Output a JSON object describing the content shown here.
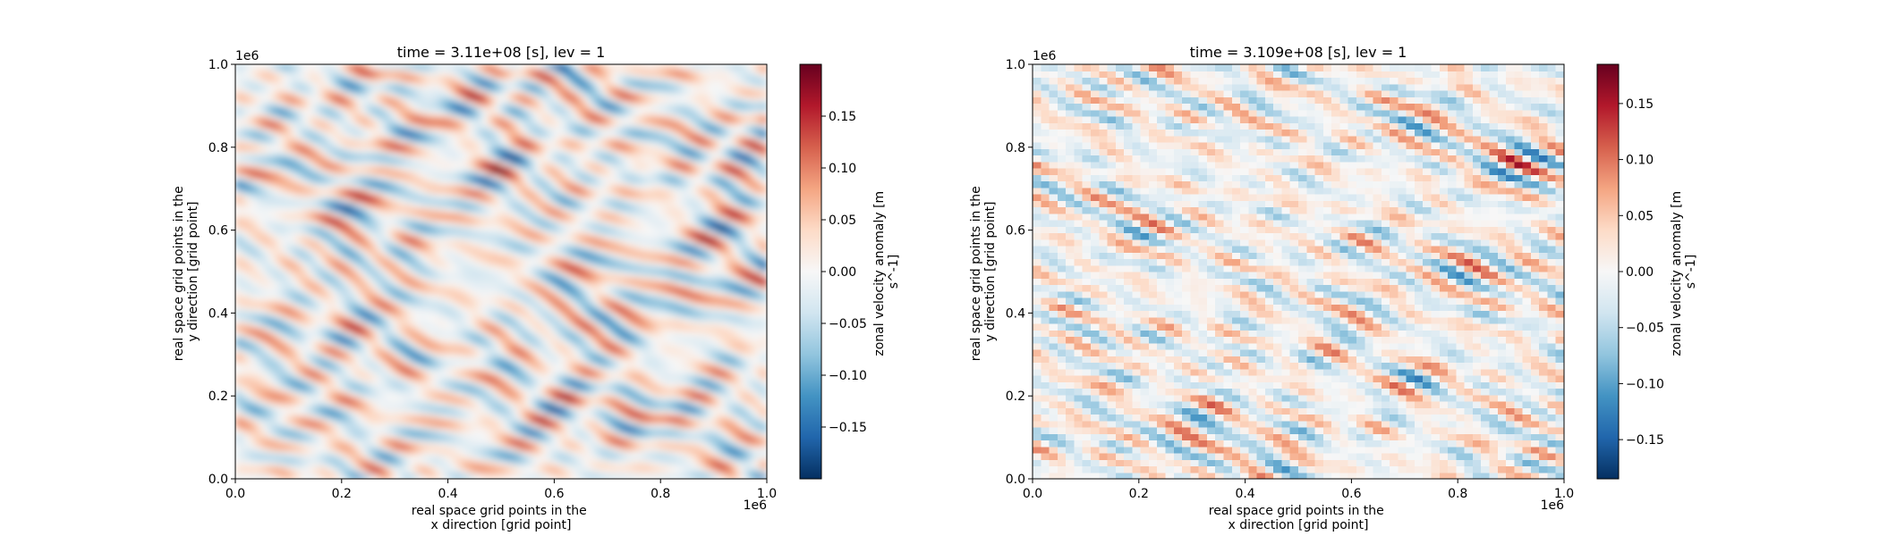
{
  "chart_data": [
    {
      "type": "heatmap",
      "title": "time = 3.11e+08 [s], lev = 1",
      "xlabel": "real space grid points in the x direction [grid point]",
      "xlabel_lines": [
        "real space grid points in the",
        "x direction [grid point]"
      ],
      "ylabel": "real space grid points in the y direction [grid point]",
      "ylabel_lines": [
        "real space grid points in the",
        "y direction [grid point]"
      ],
      "x_ticks": [
        0.0,
        0.2,
        0.4,
        0.6,
        0.8,
        1.0
      ],
      "x_tick_labels": [
        "0.0",
        "0.2",
        "0.4",
        "0.6",
        "0.8",
        "1.0"
      ],
      "y_ticks": [
        0.0,
        0.2,
        0.4,
        0.6,
        0.8,
        1.0
      ],
      "y_tick_labels": [
        "0.0",
        "0.2",
        "0.4",
        "0.6",
        "0.8",
        "1.0"
      ],
      "x_offset_label": "1e6",
      "y_offset_label": "1e6",
      "xlim": [
        0,
        1000000
      ],
      "ylim": [
        0,
        1000000
      ],
      "colorbar": {
        "label": "zonal velocity anomaly [m s^-1]",
        "label_lines": [
          "zonal velocity anomaly [m",
          "s^-1]"
        ],
        "range": [
          -0.2,
          0.2
        ],
        "ticks": [
          -0.15,
          -0.1,
          -0.05,
          0.0,
          0.05,
          0.1,
          0.15
        ],
        "tick_labels": [
          "−0.15",
          "−0.10",
          "−0.05",
          "0.00",
          "0.05",
          "0.10",
          "0.15"
        ],
        "colormap": "RdBu_r"
      },
      "resolution": "fine"
    },
    {
      "type": "heatmap",
      "title": "time = 3.109e+08 [s], lev = 1",
      "xlabel": "real space grid points in the x direction [grid point]",
      "xlabel_lines": [
        "real space grid points in the",
        "x direction [grid point]"
      ],
      "ylabel": "real space grid points in the y direction [grid point]",
      "ylabel_lines": [
        "real space grid points in the",
        "y direction [grid point]"
      ],
      "x_ticks": [
        0.0,
        0.2,
        0.4,
        0.6,
        0.8,
        1.0
      ],
      "x_tick_labels": [
        "0.0",
        "0.2",
        "0.4",
        "0.6",
        "0.8",
        "1.0"
      ],
      "y_ticks": [
        0.0,
        0.2,
        0.4,
        0.6,
        0.8,
        1.0
      ],
      "y_tick_labels": [
        "0.0",
        "0.2",
        "0.4",
        "0.6",
        "0.8",
        "1.0"
      ],
      "x_offset_label": "1e6",
      "y_offset_label": "1e6",
      "xlim": [
        0,
        1000000
      ],
      "ylim": [
        0,
        1000000
      ],
      "colorbar": {
        "label": "zonal velocity anomaly [m s^-1]",
        "label_lines": [
          "zonal velocity anomaly [m",
          "s^-1]"
        ],
        "range": [
          -0.185,
          0.185
        ],
        "ticks": [
          -0.15,
          -0.1,
          -0.05,
          0.0,
          0.05,
          0.1,
          0.15
        ],
        "tick_labels": [
          "−0.15",
          "−0.10",
          "−0.05",
          "0.00",
          "0.05",
          "0.10",
          "0.15"
        ],
        "colormap": "RdBu_r"
      },
      "resolution": "coarse"
    }
  ]
}
